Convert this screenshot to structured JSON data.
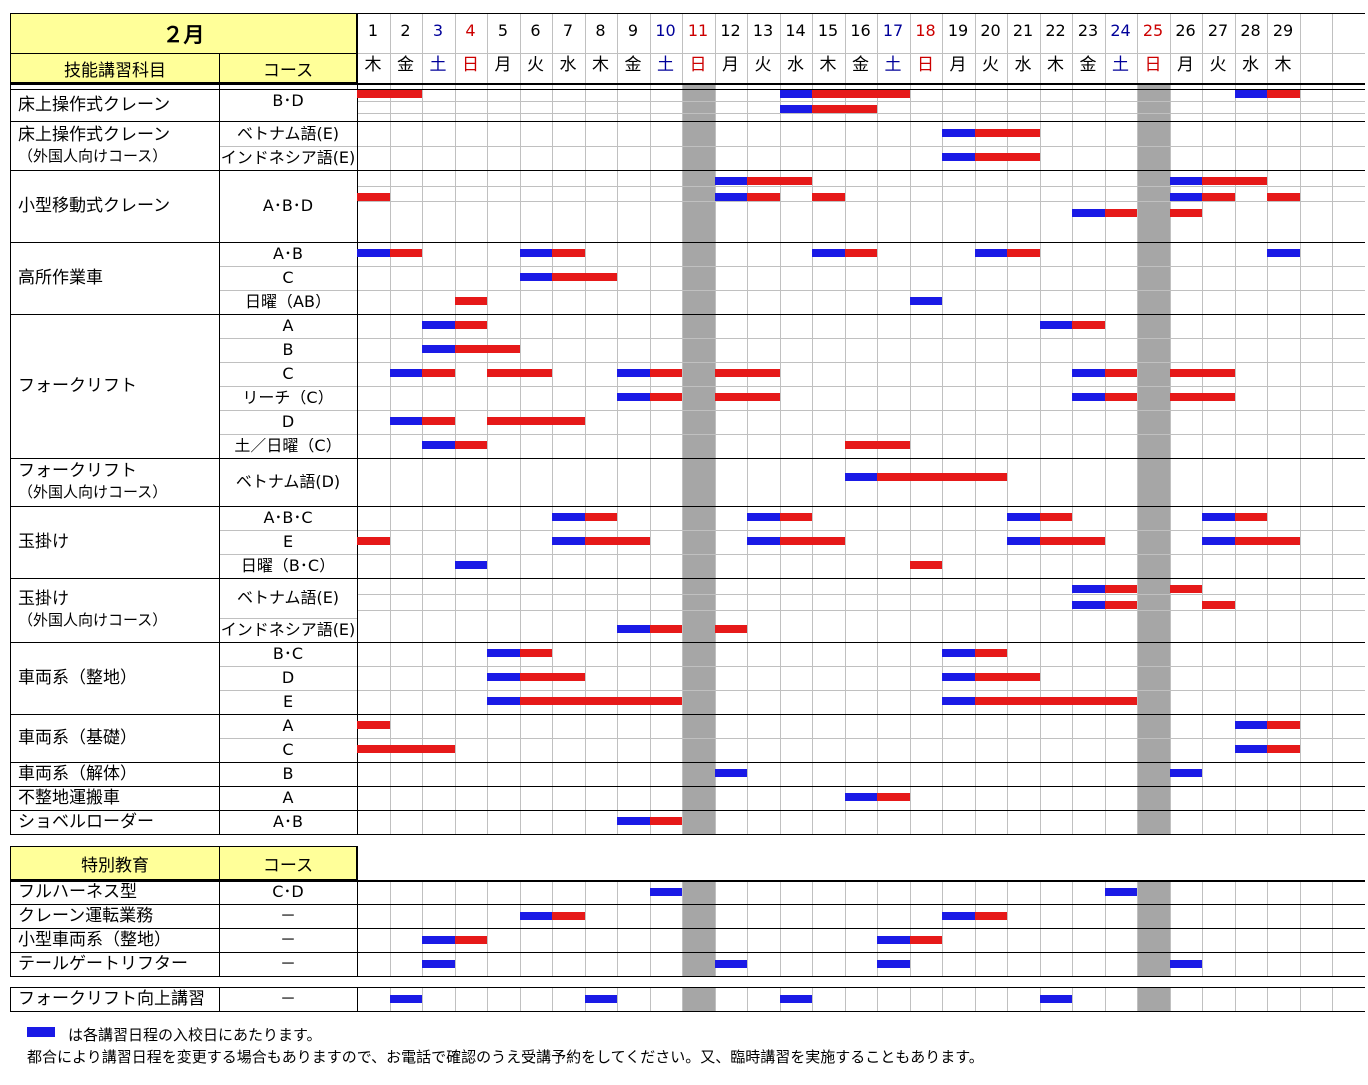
{
  "month_label": "２月",
  "headers": {
    "subject": "技能講習科目",
    "course": "コース",
    "special": "特別教育",
    "special_course": "コース"
  },
  "days": [
    "1",
    "2",
    "3",
    "4",
    "5",
    "6",
    "7",
    "8",
    "9",
    "10",
    "11",
    "12",
    "13",
    "14",
    "15",
    "16",
    "17",
    "18",
    "19",
    "20",
    "21",
    "22",
    "23",
    "24",
    "25",
    "26",
    "27",
    "28",
    "29"
  ],
  "weekdays": [
    "木",
    "金",
    "土",
    "日",
    "月",
    "火",
    "水",
    "木",
    "金",
    "土",
    "日",
    "月",
    "火",
    "水",
    "木",
    "金",
    "土",
    "日",
    "月",
    "火",
    "水",
    "木",
    "金",
    "土",
    "日",
    "月",
    "火",
    "水",
    "木"
  ],
  "day_colors": {
    "sat": "#000099",
    "sun": "#cc0000",
    "weekday": "#000000"
  },
  "closed_days": [
    "11",
    "25"
  ],
  "legend": {
    "entry_color": "#1a1ae6",
    "course_color": "#e61919",
    "entry_text": "は各講習日程の入校日にあたります。",
    "note_text": "都合により講習日程を変更する場合もありますので、お電話で確認のうえ受講予約をしてください。又、臨時講習を実施することもあります。"
  },
  "groups": [
    {
      "id": "g1",
      "subject": [
        "床上操作式クレーン"
      ],
      "rows": [
        {
          "course": "B･D",
          "sessions": [
            {
              "start": 1,
              "entry": false,
              "len": 2
            },
            {
              "start": 14,
              "entry": true,
              "len": 4
            },
            {
              "start": 28,
              "entry": true,
              "len": 2
            }
          ]
        },
        {
          "course": "",
          "sessions": [
            {
              "start": 14,
              "entry": true,
              "len": 2
            },
            {
              "start": 16,
              "entry": false,
              "len": 1
            }
          ]
        }
      ]
    },
    {
      "id": "g2",
      "subject": [
        "床上操作式クレーン",
        "（外国人向けコース）"
      ],
      "rows": [
        {
          "course": "ベトナム語(E)",
          "sessions": [
            {
              "start": 19,
              "entry": true,
              "len": 3
            }
          ]
        },
        {
          "course": "インドネシア語(E)",
          "sessions": [
            {
              "start": 19,
              "entry": true,
              "len": 3
            }
          ]
        }
      ]
    },
    {
      "id": "g3",
      "subject": [
        "小型移動式クレーン"
      ],
      "rows": [
        {
          "course": "",
          "sessions": [
            {
              "start": 12,
              "entry": true,
              "len": 3
            },
            {
              "start": 26,
              "entry": true,
              "len": 3
            }
          ]
        },
        {
          "course": "A･B･D",
          "sessions": [
            {
              "start": 1,
              "entry": false,
              "len": 1
            },
            {
              "start": 12,
              "entry": true,
              "len": 2
            },
            {
              "start": 15,
              "entry": false,
              "len": 1
            },
            {
              "start": 26,
              "entry": true,
              "len": 2
            },
            {
              "start": 29,
              "entry": false,
              "len": 1
            }
          ]
        },
        {
          "course": "",
          "sessions": [
            {
              "start": 23,
              "entry": true,
              "len": 2
            },
            {
              "start": 26,
              "entry": false,
              "len": 1
            }
          ]
        }
      ]
    },
    {
      "id": "g4",
      "subject": [
        "高所作業車"
      ],
      "rows": [
        {
          "course": "A･B",
          "sessions": [
            {
              "start": 1,
              "entry": true,
              "len": 2
            },
            {
              "start": 6,
              "entry": true,
              "len": 2
            },
            {
              "start": 15,
              "entry": true,
              "len": 2
            },
            {
              "start": 20,
              "entry": true,
              "len": 2
            },
            {
              "start": 29,
              "entry": true,
              "len": 1
            }
          ]
        },
        {
          "course": "C",
          "sessions": [
            {
              "start": 6,
              "entry": true,
              "len": 3
            }
          ]
        },
        {
          "course": "日曜（AB）",
          "sessions": [
            {
              "start": 4,
              "entry": false,
              "len": 1
            },
            {
              "start": 18,
              "entry": true,
              "len": 1
            }
          ]
        }
      ]
    },
    {
      "id": "g5",
      "subject": [
        "フォークリフト"
      ],
      "rows": [
        {
          "course": "A",
          "sessions": [
            {
              "start": 3,
              "entry": true,
              "len": 2
            },
            {
              "start": 22,
              "entry": true,
              "len": 2
            }
          ]
        },
        {
          "course": "B",
          "sessions": [
            {
              "start": 3,
              "entry": true,
              "len": 3
            }
          ]
        },
        {
          "course": "C",
          "sessions": [
            {
              "start": 2,
              "entry": true,
              "len": 2
            },
            {
              "start": 5,
              "entry": false,
              "len": 2
            },
            {
              "start": 9,
              "entry": true,
              "len": 2
            },
            {
              "start": 12,
              "entry": false,
              "len": 2
            },
            {
              "start": 23,
              "entry": true,
              "len": 2
            },
            {
              "start": 26,
              "entry": false,
              "len": 2
            }
          ]
        },
        {
          "course": "リーチ（C）",
          "sessions": [
            {
              "start": 9,
              "entry": true,
              "len": 2
            },
            {
              "start": 12,
              "entry": false,
              "len": 2
            },
            {
              "start": 23,
              "entry": true,
              "len": 2
            },
            {
              "start": 26,
              "entry": false,
              "len": 2
            }
          ]
        },
        {
          "course": "D",
          "sessions": [
            {
              "start": 2,
              "entry": true,
              "len": 2
            },
            {
              "start": 5,
              "entry": false,
              "len": 3
            }
          ]
        },
        {
          "course": "土／日曜（C）",
          "sessions": [
            {
              "start": 3,
              "entry": true,
              "len": 2
            },
            {
              "start": 16,
              "entry": false,
              "len": 2
            }
          ]
        }
      ]
    },
    {
      "id": "g6",
      "subject": [
        "フォークリフト",
        "（外国人向けコース）"
      ],
      "rows": [
        {
          "course": "ベトナム語(D)",
          "sessions": [
            {
              "start": 16,
              "entry": true,
              "len": 5
            }
          ]
        }
      ]
    },
    {
      "id": "g7",
      "subject": [
        "玉掛け"
      ],
      "rows": [
        {
          "course": "A･B･C",
          "sessions": [
            {
              "start": 7,
              "entry": true,
              "len": 2
            },
            {
              "start": 13,
              "entry": true,
              "len": 2
            },
            {
              "start": 21,
              "entry": true,
              "len": 2
            },
            {
              "start": 27,
              "entry": true,
              "len": 2
            }
          ]
        },
        {
          "course": "E",
          "sessions": [
            {
              "start": 1,
              "entry": false,
              "len": 1
            },
            {
              "start": 7,
              "entry": true,
              "len": 3
            },
            {
              "start": 13,
              "entry": true,
              "len": 3
            },
            {
              "start": 21,
              "entry": true,
              "len": 3
            },
            {
              "start": 27,
              "entry": true,
              "len": 3
            }
          ]
        },
        {
          "course": "日曜（B･C）",
          "sessions": [
            {
              "start": 4,
              "entry": true,
              "len": 1
            },
            {
              "start": 18,
              "entry": false,
              "len": 1
            }
          ]
        }
      ]
    },
    {
      "id": "g8",
      "subject": [
        "玉掛け",
        "（外国人向けコース）"
      ],
      "rows": [
        {
          "course": "ベトナム語(E)",
          "sessions": [
            {
              "start": 23,
              "entry": true,
              "len": 2
            },
            {
              "start": 26,
              "entry": false,
              "len": 1
            }
          ]
        },
        {
          "course": "",
          "sessions": [
            {
              "start": 23,
              "entry": true,
              "len": 2
            },
            {
              "start": 27,
              "entry": false,
              "len": 1
            }
          ]
        },
        {
          "course": "インドネシア語(E)",
          "sessions": [
            {
              "start": 9,
              "entry": true,
              "len": 2
            },
            {
              "start": 12,
              "entry": false,
              "len": 1
            }
          ]
        }
      ]
    },
    {
      "id": "g9",
      "subject": [
        "車両系（整地）"
      ],
      "rows": [
        {
          "course": "B･C",
          "sessions": [
            {
              "start": 5,
              "entry": true,
              "len": 2
            },
            {
              "start": 19,
              "entry": true,
              "len": 2
            }
          ]
        },
        {
          "course": "D",
          "sessions": [
            {
              "start": 5,
              "entry": true,
              "len": 3
            },
            {
              "start": 19,
              "entry": true,
              "len": 3
            }
          ]
        },
        {
          "course": "E",
          "sessions": [
            {
              "start": 5,
              "entry": true,
              "len": 6
            },
            {
              "start": 19,
              "entry": true,
              "len": 6
            }
          ]
        }
      ]
    },
    {
      "id": "g10",
      "subject": [
        "車両系（基礎）"
      ],
      "rows": [
        {
          "course": "A",
          "sessions": [
            {
              "start": 1,
              "entry": false,
              "len": 1
            },
            {
              "start": 28,
              "entry": true,
              "len": 2
            }
          ]
        },
        {
          "course": "C",
          "sessions": [
            {
              "start": 1,
              "entry": false,
              "len": 3
            },
            {
              "start": 28,
              "entry": true,
              "len": 2
            }
          ]
        }
      ]
    },
    {
      "id": "g11",
      "subject": [
        "車両系（解体）"
      ],
      "rows": [
        {
          "course": "B",
          "sessions": [
            {
              "start": 12,
              "entry": true,
              "len": 1
            },
            {
              "start": 26,
              "entry": true,
              "len": 1
            }
          ]
        }
      ]
    },
    {
      "id": "g12",
      "subject": [
        "不整地運搬車"
      ],
      "rows": [
        {
          "course": "A",
          "sessions": [
            {
              "start": 16,
              "entry": true,
              "len": 2
            }
          ]
        }
      ]
    },
    {
      "id": "g13",
      "subject": [
        "ショベルローダー"
      ],
      "rows": [
        {
          "course": "A･B",
          "sessions": [
            {
              "start": 9,
              "entry": true,
              "len": 2
            }
          ]
        }
      ]
    }
  ],
  "special_rows": [
    {
      "subject": "フルハーネス型",
      "course": "C･D",
      "sessions": [
        {
          "start": 10,
          "entry": true,
          "len": 1
        },
        {
          "start": 24,
          "entry": true,
          "len": 1
        }
      ]
    },
    {
      "subject": "クレーン運転業務",
      "course": "－",
      "sessions": [
        {
          "start": 6,
          "entry": true,
          "len": 2
        },
        {
          "start": 19,
          "entry": true,
          "len": 2
        }
      ]
    },
    {
      "subject": "小型車両系（整地）",
      "course": "－",
      "sessions": [
        {
          "start": 3,
          "entry": true,
          "len": 2
        },
        {
          "start": 17,
          "entry": true,
          "len": 2
        }
      ]
    },
    {
      "subject": "テールゲートリフター",
      "course": "－",
      "sessions": [
        {
          "start": 3,
          "entry": true,
          "len": 1
        },
        {
          "start": 12,
          "entry": true,
          "len": 1
        },
        {
          "start": 17,
          "entry": true,
          "len": 1
        },
        {
          "start": 26,
          "entry": true,
          "len": 1
        }
      ]
    }
  ],
  "extra_row": {
    "subject": "フォークリフト向上講習",
    "course": "－",
    "sessions": [
      {
        "start": 2,
        "entry": true,
        "len": 1
      },
      {
        "start": 8,
        "entry": true,
        "len": 1
      },
      {
        "start": 14,
        "entry": true,
        "len": 1
      },
      {
        "start": 22,
        "entry": true,
        "len": 1
      }
    ]
  }
}
